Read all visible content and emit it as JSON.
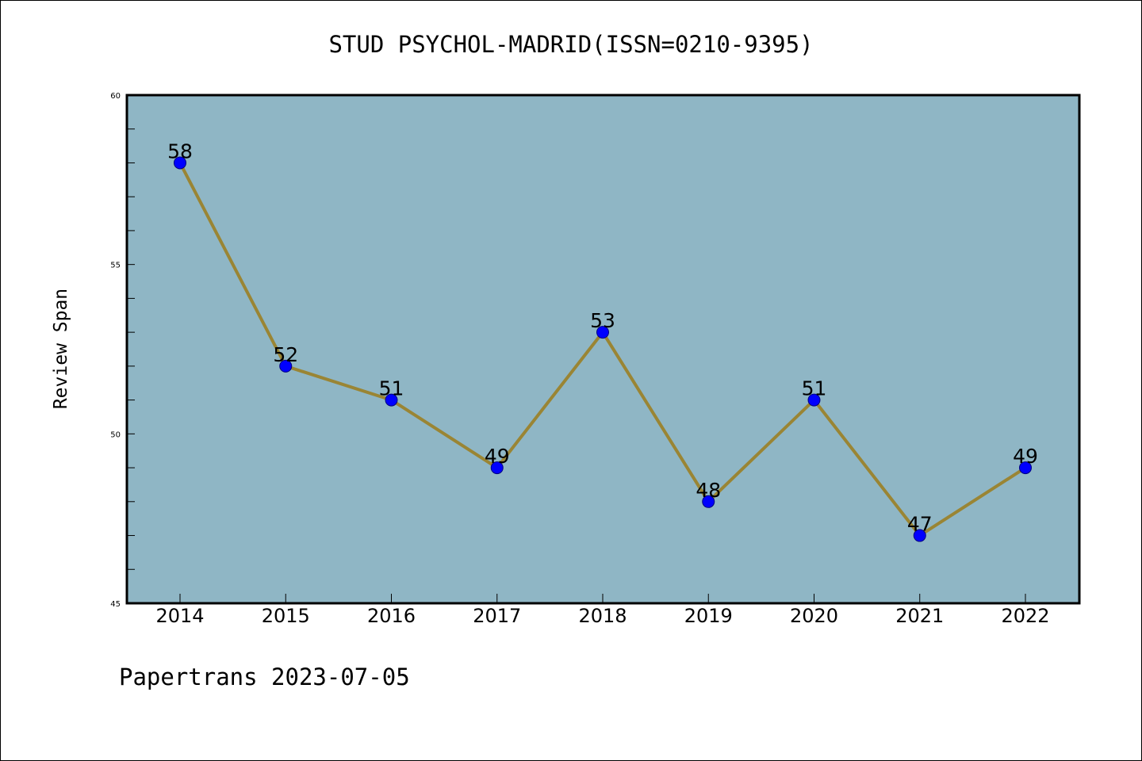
{
  "chart_data": {
    "type": "line",
    "title": "STUD PSYCHOL-MADRID(ISSN=0210-9395)",
    "xlabel": "",
    "ylabel": "Review Span",
    "categories": [
      "2014",
      "2015",
      "2016",
      "2017",
      "2018",
      "2019",
      "2020",
      "2021",
      "2022"
    ],
    "values": [
      58,
      52,
      51,
      49,
      53,
      48,
      51,
      47,
      49
    ],
    "data_labels": [
      "58",
      "52",
      "51",
      "49",
      "53",
      "48",
      "51",
      "47",
      "49"
    ],
    "ylim": [
      45,
      60
    ],
    "yticks": [
      45,
      50,
      55,
      60
    ],
    "ytick_labels": [
      "45",
      "50",
      "55",
      "60"
    ],
    "grid": false,
    "colors": {
      "plot_background": "#8fb6c5",
      "line": "#9a8534",
      "marker_fill": "#0000ff",
      "marker_edge": "#000080"
    }
  },
  "footer": {
    "text": "Papertrans 2023-07-05"
  }
}
